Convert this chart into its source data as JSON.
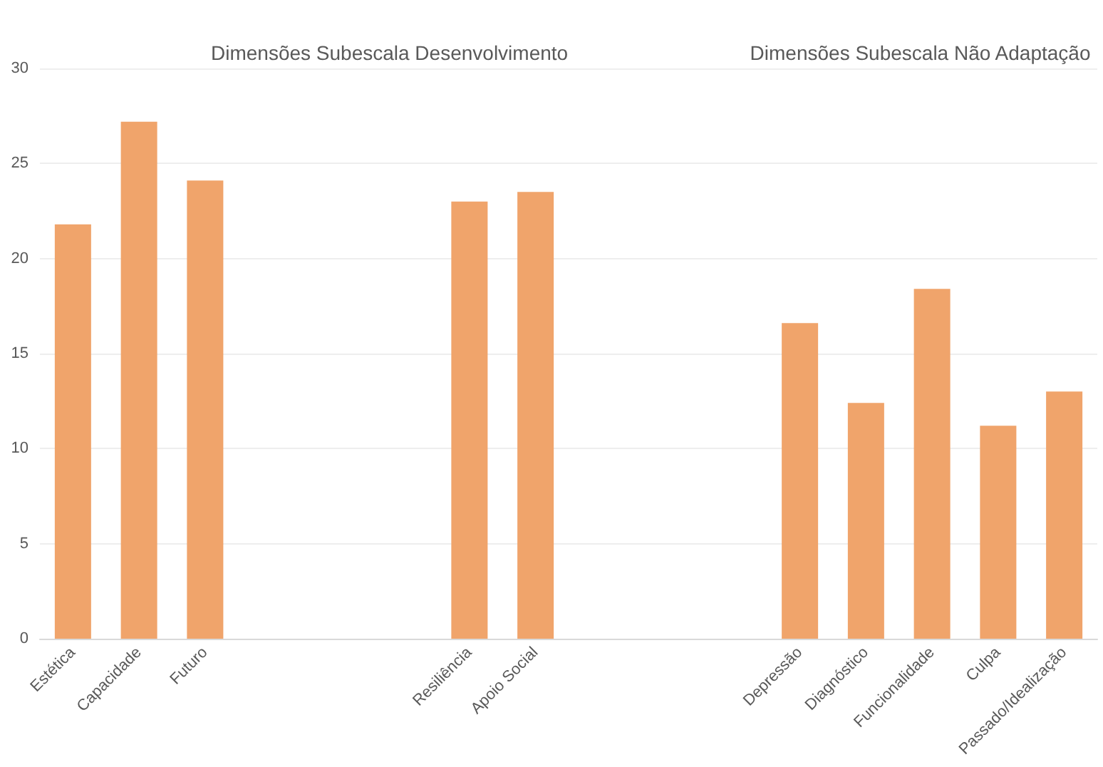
{
  "chart_data": {
    "type": "bar",
    "categories": [
      "Estética",
      "Capacidade",
      "Futuro",
      null,
      null,
      null,
      "Resiliência",
      "Apoio Social",
      null,
      null,
      null,
      "Depressão",
      "Diagnóstico",
      "Funcionalidade",
      "Culpa",
      "Passado/Idealização"
    ],
    "values": [
      21.8,
      27.2,
      24.1,
      null,
      null,
      null,
      23.0,
      23.5,
      null,
      null,
      null,
      16.6,
      12.4,
      18.4,
      11.2,
      13.0
    ],
    "color": "#f0a46b",
    "ylim": [
      0,
      30
    ],
    "yticks": [
      0,
      5,
      10,
      15,
      20,
      25,
      30
    ],
    "grid": "y",
    "annotations": [
      "Dimensões Subescala Desenvolvimento",
      "Dimensões Subescala Não Adaptação"
    ]
  }
}
